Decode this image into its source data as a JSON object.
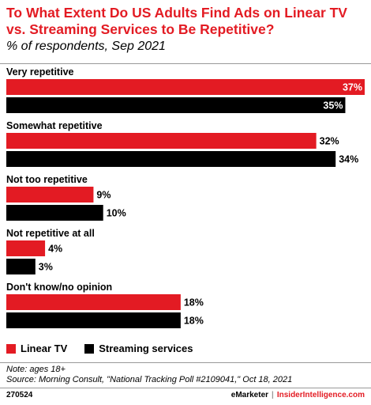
{
  "header": {
    "title": "To What Extent Do US Adults Find Ads on Linear TV vs. Streaming Services to Be Repetitive?",
    "subtitle": "% of respondents, Sep 2021"
  },
  "colors": {
    "linear": "#e31b23",
    "streaming": "#000000",
    "accent": "#e31b23"
  },
  "chart_data": {
    "type": "bar",
    "orientation": "horizontal",
    "categories": [
      "Very repetitive",
      "Somewhat repetitive",
      "Not too repetitive",
      "Not repetitive at all",
      "Don't know/no opinion"
    ],
    "series": [
      {
        "name": "Linear TV",
        "values": [
          37,
          32,
          9,
          4,
          18
        ],
        "labels": [
          "37%",
          "32%",
          "9%",
          "4%",
          "18%"
        ]
      },
      {
        "name": "Streaming services",
        "values": [
          35,
          34,
          10,
          3,
          18
        ],
        "labels": [
          "35%",
          "34%",
          "10%",
          "3%",
          "18%"
        ]
      }
    ],
    "xlim": [
      0,
      37
    ],
    "legend": "bottom-left",
    "grid": false
  },
  "legend": {
    "linear_label": "Linear TV",
    "streaming_label": "Streaming services"
  },
  "footer": {
    "note": "Note: ages 18+",
    "source": "Source: Morning Consult, \"National Tracking Poll #2109041,\" Oct 18, 2021",
    "chart_id": "270524",
    "brand_a": "eMarketer",
    "brand_sep": "|",
    "brand_b": "InsiderIntelligence.com"
  }
}
